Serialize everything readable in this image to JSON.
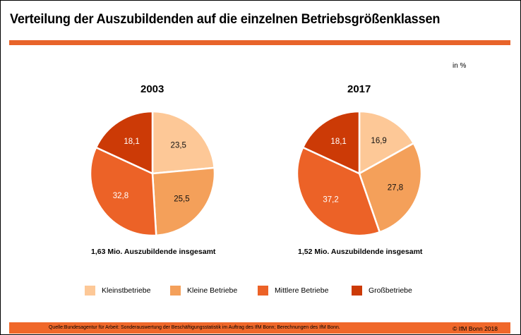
{
  "header": {
    "title": "Verteilung der Auszubildenden auf die einzelnen Betriebsgrößenklassen",
    "unit": "in %"
  },
  "colors": {
    "accent": "#e8642a",
    "Kleinstbetriebe": "#fdc897",
    "Kleine Betriebe": "#f4a05a",
    "Mittlere Betriebe": "#ec6227",
    "Großbetriebe": "#cc3a06"
  },
  "chart_data": [
    {
      "type": "pie",
      "title": "2003",
      "categories": [
        "Kleinstbetriebe",
        "Kleine Betriebe",
        "Mittlere Betriebe",
        "Großbetriebe"
      ],
      "values": [
        23.5,
        25.5,
        32.8,
        18.1
      ],
      "labels": [
        "23,5",
        "25,5",
        "32,8",
        "18,1"
      ],
      "subtitle": "1,63 Mio. Auszubildende insgesamt",
      "start": "12 o'clock",
      "direction": "clockwise"
    },
    {
      "type": "pie",
      "title": "2017",
      "categories": [
        "Kleinstbetriebe",
        "Kleine Betriebe",
        "Mittlere Betriebe",
        "Großbetriebe"
      ],
      "values": [
        16.9,
        27.8,
        37.2,
        18.1
      ],
      "labels": [
        "16,9",
        "27,8",
        "37,2",
        "18,1"
      ],
      "subtitle": "1,52 Mio. Auszubildende insgesamt",
      "start": "12 o'clock",
      "direction": "clockwise"
    }
  ],
  "legend": {
    "placement": "bottom",
    "items": [
      "Kleinstbetriebe",
      "Kleine Betriebe",
      "Mittlere Betriebe",
      "Großbetriebe"
    ]
  },
  "footer": {
    "source": "Quelle:Bundesagentur für Arbeit: Sonderauswertung der Beschäftigungsstatistik im Auftrag des IfM Bonn; Berechnungen des IfM Bonn.",
    "copyright": "© IfM Bonn 2018"
  }
}
